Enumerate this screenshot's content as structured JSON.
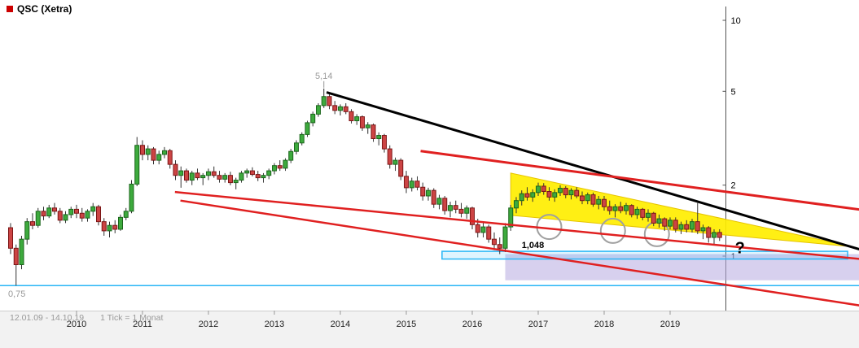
{
  "header": {
    "title": "QSC (Xetra)",
    "marker_color": "#cc0000"
  },
  "footer": {
    "range_text": "12.01.09 - 14.10.19",
    "tick_text": "1 Tick = 1 Monat"
  },
  "colors": {
    "up_fill": "#3daa3d",
    "up_stroke": "#1c661c",
    "down_fill": "#cc4444",
    "down_stroke": "#7c1616",
    "wick": "#333333",
    "footer_bg": "#f2f2f2",
    "grid": "#cccccc",
    "axis": "#555555",
    "label_gray": "#999999",
    "annotation_black": "#000000",
    "trend_red": "#e02020",
    "trend_black": "#000000",
    "wedge_yellow": "#ffee00",
    "zone_purple": "#b7a9e0",
    "level_cyan": "#29b6f6",
    "circle_gray": "#a0a0a0"
  },
  "chart_data": {
    "type": "candlestick",
    "scale": "log",
    "title": "QSC (Xetra)",
    "frequency": "monthly",
    "start_month": "2009-01",
    "end_month": "2019-10",
    "x_tick_labels": [
      "2010",
      "2011",
      "2012",
      "2013",
      "2014",
      "2015",
      "2016",
      "2017",
      "2018",
      "2019"
    ],
    "y_ticks": [
      10,
      5,
      2,
      1
    ],
    "ylim": [
      0.6,
      11
    ],
    "legend": "none",
    "grid": "off",
    "ohlc": [
      [
        1.32,
        1.38,
        1.02,
        1.08
      ],
      [
        1.08,
        1.12,
        0.75,
        0.92
      ],
      [
        0.92,
        1.22,
        0.88,
        1.18
      ],
      [
        1.18,
        1.45,
        1.12,
        1.4
      ],
      [
        1.4,
        1.52,
        1.3,
        1.35
      ],
      [
        1.35,
        1.6,
        1.32,
        1.55
      ],
      [
        1.55,
        1.62,
        1.42,
        1.48
      ],
      [
        1.48,
        1.65,
        1.45,
        1.6
      ],
      [
        1.6,
        1.68,
        1.5,
        1.55
      ],
      [
        1.55,
        1.6,
        1.38,
        1.42
      ],
      [
        1.42,
        1.55,
        1.38,
        1.5
      ],
      [
        1.5,
        1.62,
        1.45,
        1.58
      ],
      [
        1.58,
        1.65,
        1.45,
        1.52
      ],
      [
        1.52,
        1.6,
        1.4,
        1.45
      ],
      [
        1.45,
        1.58,
        1.4,
        1.55
      ],
      [
        1.55,
        1.68,
        1.48,
        1.62
      ],
      [
        1.62,
        1.65,
        1.35,
        1.4
      ],
      [
        1.4,
        1.45,
        1.22,
        1.28
      ],
      [
        1.28,
        1.4,
        1.2,
        1.35
      ],
      [
        1.35,
        1.42,
        1.25,
        1.3
      ],
      [
        1.3,
        1.5,
        1.28,
        1.46
      ],
      [
        1.46,
        1.6,
        1.42,
        1.55
      ],
      [
        1.55,
        2.1,
        1.52,
        2.02
      ],
      [
        2.02,
        3.2,
        1.98,
        2.95
      ],
      [
        2.95,
        3.1,
        2.55,
        2.7
      ],
      [
        2.7,
        2.95,
        2.55,
        2.85
      ],
      [
        2.85,
        2.9,
        2.45,
        2.55
      ],
      [
        2.55,
        2.8,
        2.45,
        2.7
      ],
      [
        2.7,
        2.9,
        2.6,
        2.8
      ],
      [
        2.8,
        2.85,
        2.35,
        2.45
      ],
      [
        2.45,
        2.55,
        2.1,
        2.2
      ],
      [
        2.2,
        2.4,
        1.95,
        2.3
      ],
      [
        2.3,
        2.35,
        2.05,
        2.1
      ],
      [
        2.1,
        2.3,
        2.0,
        2.25
      ],
      [
        2.25,
        2.35,
        2.1,
        2.15
      ],
      [
        2.15,
        2.25,
        2.0,
        2.2
      ],
      [
        2.2,
        2.35,
        2.1,
        2.28
      ],
      [
        2.28,
        2.4,
        2.15,
        2.2
      ],
      [
        2.2,
        2.3,
        2.05,
        2.12
      ],
      [
        2.12,
        2.25,
        2.05,
        2.2
      ],
      [
        2.2,
        2.28,
        2.0,
        2.05
      ],
      [
        2.05,
        2.15,
        1.92,
        2.1
      ],
      [
        2.1,
        2.3,
        2.05,
        2.25
      ],
      [
        2.25,
        2.35,
        2.15,
        2.3
      ],
      [
        2.3,
        2.38,
        2.18,
        2.22
      ],
      [
        2.22,
        2.3,
        2.08,
        2.15
      ],
      [
        2.15,
        2.25,
        2.05,
        2.2
      ],
      [
        2.2,
        2.35,
        2.12,
        2.3
      ],
      [
        2.3,
        2.48,
        2.22,
        2.42
      ],
      [
        2.42,
        2.55,
        2.3,
        2.36
      ],
      [
        2.36,
        2.6,
        2.3,
        2.55
      ],
      [
        2.55,
        2.85,
        2.48,
        2.78
      ],
      [
        2.78,
        3.1,
        2.7,
        3.02
      ],
      [
        3.02,
        3.35,
        2.95,
        3.28
      ],
      [
        3.28,
        3.75,
        3.2,
        3.68
      ],
      [
        3.68,
        4.1,
        3.55,
        4.0
      ],
      [
        4.0,
        4.45,
        3.9,
        4.35
      ],
      [
        4.35,
        5.14,
        4.25,
        4.75
      ],
      [
        4.75,
        4.85,
        4.2,
        4.35
      ],
      [
        4.35,
        4.55,
        4.0,
        4.15
      ],
      [
        4.15,
        4.4,
        3.95,
        4.3
      ],
      [
        4.3,
        4.45,
        4.0,
        4.1
      ],
      [
        4.1,
        4.2,
        3.65,
        3.75
      ],
      [
        3.75,
        4.0,
        3.6,
        3.9
      ],
      [
        3.9,
        3.95,
        3.4,
        3.5
      ],
      [
        3.5,
        3.7,
        3.3,
        3.6
      ],
      [
        3.6,
        3.65,
        3.05,
        3.15
      ],
      [
        3.15,
        3.35,
        2.95,
        3.25
      ],
      [
        3.25,
        3.3,
        2.75,
        2.85
      ],
      [
        2.85,
        2.95,
        2.35,
        2.45
      ],
      [
        2.45,
        2.62,
        2.3,
        2.55
      ],
      [
        2.55,
        2.6,
        2.1,
        2.18
      ],
      [
        2.18,
        2.3,
        1.85,
        1.95
      ],
      [
        1.95,
        2.15,
        1.88,
        2.08
      ],
      [
        2.08,
        2.18,
        1.9,
        1.96
      ],
      [
        1.96,
        2.05,
        1.72,
        1.8
      ],
      [
        1.8,
        1.95,
        1.72,
        1.9
      ],
      [
        1.9,
        1.94,
        1.6,
        1.66
      ],
      [
        1.66,
        1.82,
        1.58,
        1.76
      ],
      [
        1.76,
        1.8,
        1.5,
        1.56
      ],
      [
        1.56,
        1.7,
        1.46,
        1.64
      ],
      [
        1.64,
        1.72,
        1.52,
        1.58
      ],
      [
        1.58,
        1.68,
        1.46,
        1.52
      ],
      [
        1.52,
        1.64,
        1.44,
        1.6
      ],
      [
        1.6,
        1.62,
        1.3,
        1.36
      ],
      [
        1.36,
        1.44,
        1.2,
        1.26
      ],
      [
        1.26,
        1.38,
        1.2,
        1.33
      ],
      [
        1.33,
        1.36,
        1.14,
        1.18
      ],
      [
        1.18,
        1.26,
        1.06,
        1.12
      ],
      [
        1.12,
        1.2,
        1.02,
        1.08
      ],
      [
        1.08,
        1.38,
        1.04,
        1.33
      ],
      [
        1.33,
        1.65,
        1.28,
        1.6
      ],
      [
        1.6,
        1.78,
        1.52,
        1.72
      ],
      [
        1.72,
        1.9,
        1.64,
        1.84
      ],
      [
        1.84,
        1.96,
        1.72,
        1.78
      ],
      [
        1.78,
        1.92,
        1.7,
        1.86
      ],
      [
        1.86,
        2.05,
        1.8,
        1.98
      ],
      [
        1.98,
        2.04,
        1.82,
        1.88
      ],
      [
        1.88,
        1.96,
        1.72,
        1.78
      ],
      [
        1.78,
        1.92,
        1.7,
        1.86
      ],
      [
        1.86,
        2.0,
        1.8,
        1.94
      ],
      [
        1.94,
        1.98,
        1.76,
        1.82
      ],
      [
        1.82,
        1.94,
        1.74,
        1.9
      ],
      [
        1.9,
        1.96,
        1.76,
        1.8
      ],
      [
        1.8,
        1.88,
        1.66,
        1.72
      ],
      [
        1.72,
        1.86,
        1.66,
        1.82
      ],
      [
        1.82,
        1.86,
        1.62,
        1.66
      ],
      [
        1.66,
        1.8,
        1.58,
        1.74
      ],
      [
        1.74,
        1.8,
        1.56,
        1.62
      ],
      [
        1.62,
        1.72,
        1.5,
        1.56
      ],
      [
        1.56,
        1.66,
        1.46,
        1.62
      ],
      [
        1.62,
        1.7,
        1.52,
        1.56
      ],
      [
        1.56,
        1.68,
        1.5,
        1.64
      ],
      [
        1.64,
        1.66,
        1.46,
        1.5
      ],
      [
        1.5,
        1.62,
        1.44,
        1.58
      ],
      [
        1.58,
        1.6,
        1.42,
        1.46
      ],
      [
        1.46,
        1.58,
        1.4,
        1.52
      ],
      [
        1.52,
        1.54,
        1.34,
        1.38
      ],
      [
        1.38,
        1.5,
        1.32,
        1.44
      ],
      [
        1.44,
        1.46,
        1.28,
        1.34
      ],
      [
        1.34,
        1.46,
        1.3,
        1.42
      ],
      [
        1.42,
        1.46,
        1.26,
        1.3
      ],
      [
        1.3,
        1.4,
        1.24,
        1.36
      ],
      [
        1.36,
        1.42,
        1.26,
        1.3
      ],
      [
        1.3,
        1.44,
        1.26,
        1.4
      ],
      [
        1.4,
        1.68,
        1.24,
        1.28
      ],
      [
        1.28,
        1.36,
        1.18,
        1.32
      ],
      [
        1.32,
        1.34,
        1.14,
        1.2
      ],
      [
        1.2,
        1.3,
        1.12,
        1.26
      ],
      [
        1.26,
        1.3,
        1.16,
        1.2
      ]
    ],
    "annotations": {
      "peak": {
        "text": "5,14",
        "month_index": 57,
        "price": 5.14
      },
      "support": {
        "text": "1,048",
        "month_index": 93,
        "price": 1.048
      },
      "low_line_label": {
        "text": "0,75",
        "price": 0.75
      },
      "question": {
        "text": "?",
        "month_index": 131.8,
        "price": 1.06
      },
      "trend_lines": [
        {
          "name": "primary-downtrend-line",
          "color": "#000000",
          "width": 3,
          "from": [
            57.5,
            4.95
          ],
          "to": [
            155,
            1.06
          ]
        },
        {
          "name": "upper-resistance-red-line",
          "color": "#e02020",
          "width": 3,
          "from": [
            74.6,
            2.79
          ],
          "to": [
            155,
            1.57
          ]
        },
        {
          "name": "long-resistance-red-line",
          "color": "#e02020",
          "width": 2.5,
          "from": [
            29.9,
            1.87
          ],
          "to": [
            155,
            0.97
          ]
        },
        {
          "name": "long-support-red-line",
          "color": "#e02020",
          "width": 2.5,
          "from": [
            30.9,
            1.72
          ],
          "to": [
            155,
            0.615
          ]
        }
      ],
      "yellow_wedge": {
        "color": "#ffee00",
        "points": [
          [
            91,
            2.25
          ],
          [
            153.4,
            1.095
          ],
          [
            91,
            1.49
          ]
        ]
      },
      "purple_zone": {
        "color": "#b7a9e0",
        "from_i": 90,
        "to_i": 155,
        "top_price": 1.02,
        "bottom_price": 0.79
      },
      "cyan_zone": {
        "color": "#29b6f6",
        "from_i": 78.5,
        "to_i": 152.3,
        "top_price": 1.048,
        "bottom_price": 0.972
      },
      "cyan_level": {
        "color": "#29b6f6",
        "price": 0.75
      },
      "cycle_circles": {
        "color": "#a0a0a0",
        "radius": 15,
        "items": [
          {
            "i": 98,
            "price": 1.33
          },
          {
            "i": 109.6,
            "price": 1.28
          },
          {
            "i": 117.6,
            "price": 1.24
          }
        ]
      }
    }
  }
}
